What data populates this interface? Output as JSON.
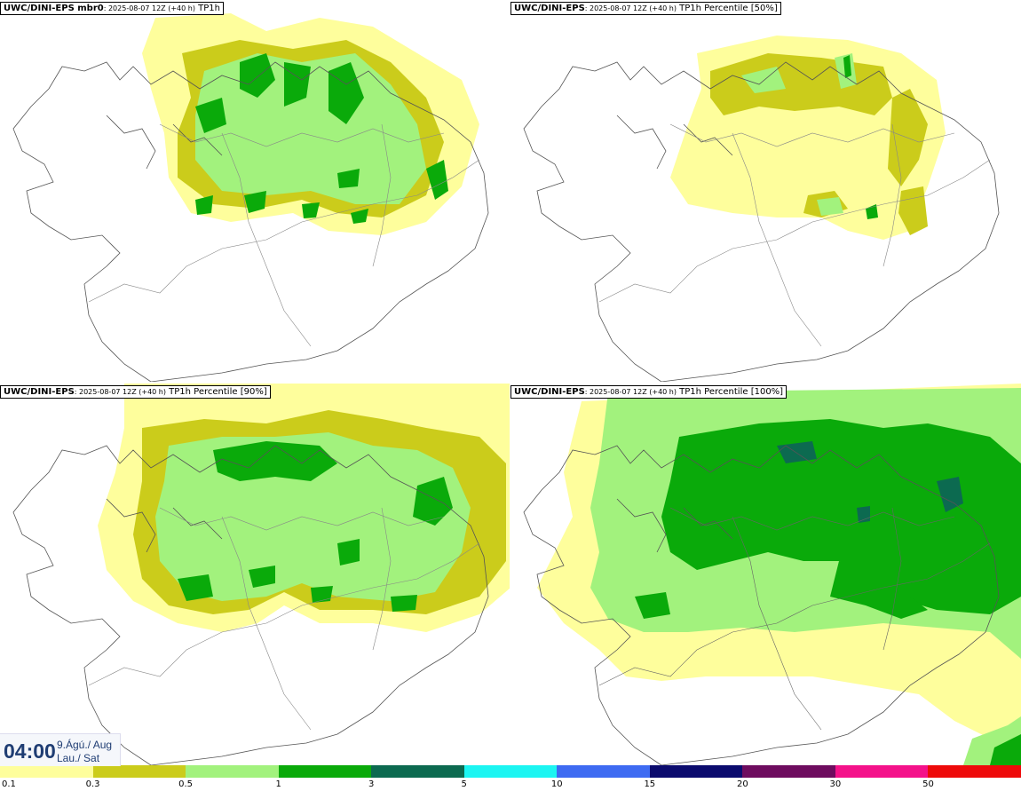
{
  "panels": [
    {
      "model": "UWC/DINI-EPS mbr0",
      "date": ": 2025-08-07 12Z (+40 h)",
      "field": " TP1h"
    },
    {
      "model": "UWC/DINI-EPS",
      "date": ": 2025-08-07 12Z (+40 h)",
      "field": " TP1h Percentile [50%]"
    },
    {
      "model": "UWC/DINI-EPS",
      "date": ": 2025-08-07 12Z (+40 h)",
      "field": " TP1h Percentile [90%]"
    },
    {
      "model": "UWC/DINI-EPS",
      "date": ": 2025-08-07 12Z (+40 h)",
      "field": " TP1h Percentile [100%]"
    }
  ],
  "valid_time": {
    "hour": "04:00",
    "date_line": "9.Ágú./ Aug",
    "day_line": "Lau./ Sat"
  },
  "legend": {
    "labels": [
      "0.1",
      "0.3",
      "0.5",
      "1",
      "3",
      "5",
      "10",
      "15",
      "20",
      "30",
      "50"
    ],
    "colors": [
      "#fefe9c",
      "#cbcc1b",
      "#a2f27d",
      "#0aaa0a",
      "#0c6a50",
      "#1cf5f2",
      "#3e6bf2",
      "#0b0b6e",
      "#6e0c5f",
      "#f4128a",
      "#ee0a0a"
    ]
  }
}
